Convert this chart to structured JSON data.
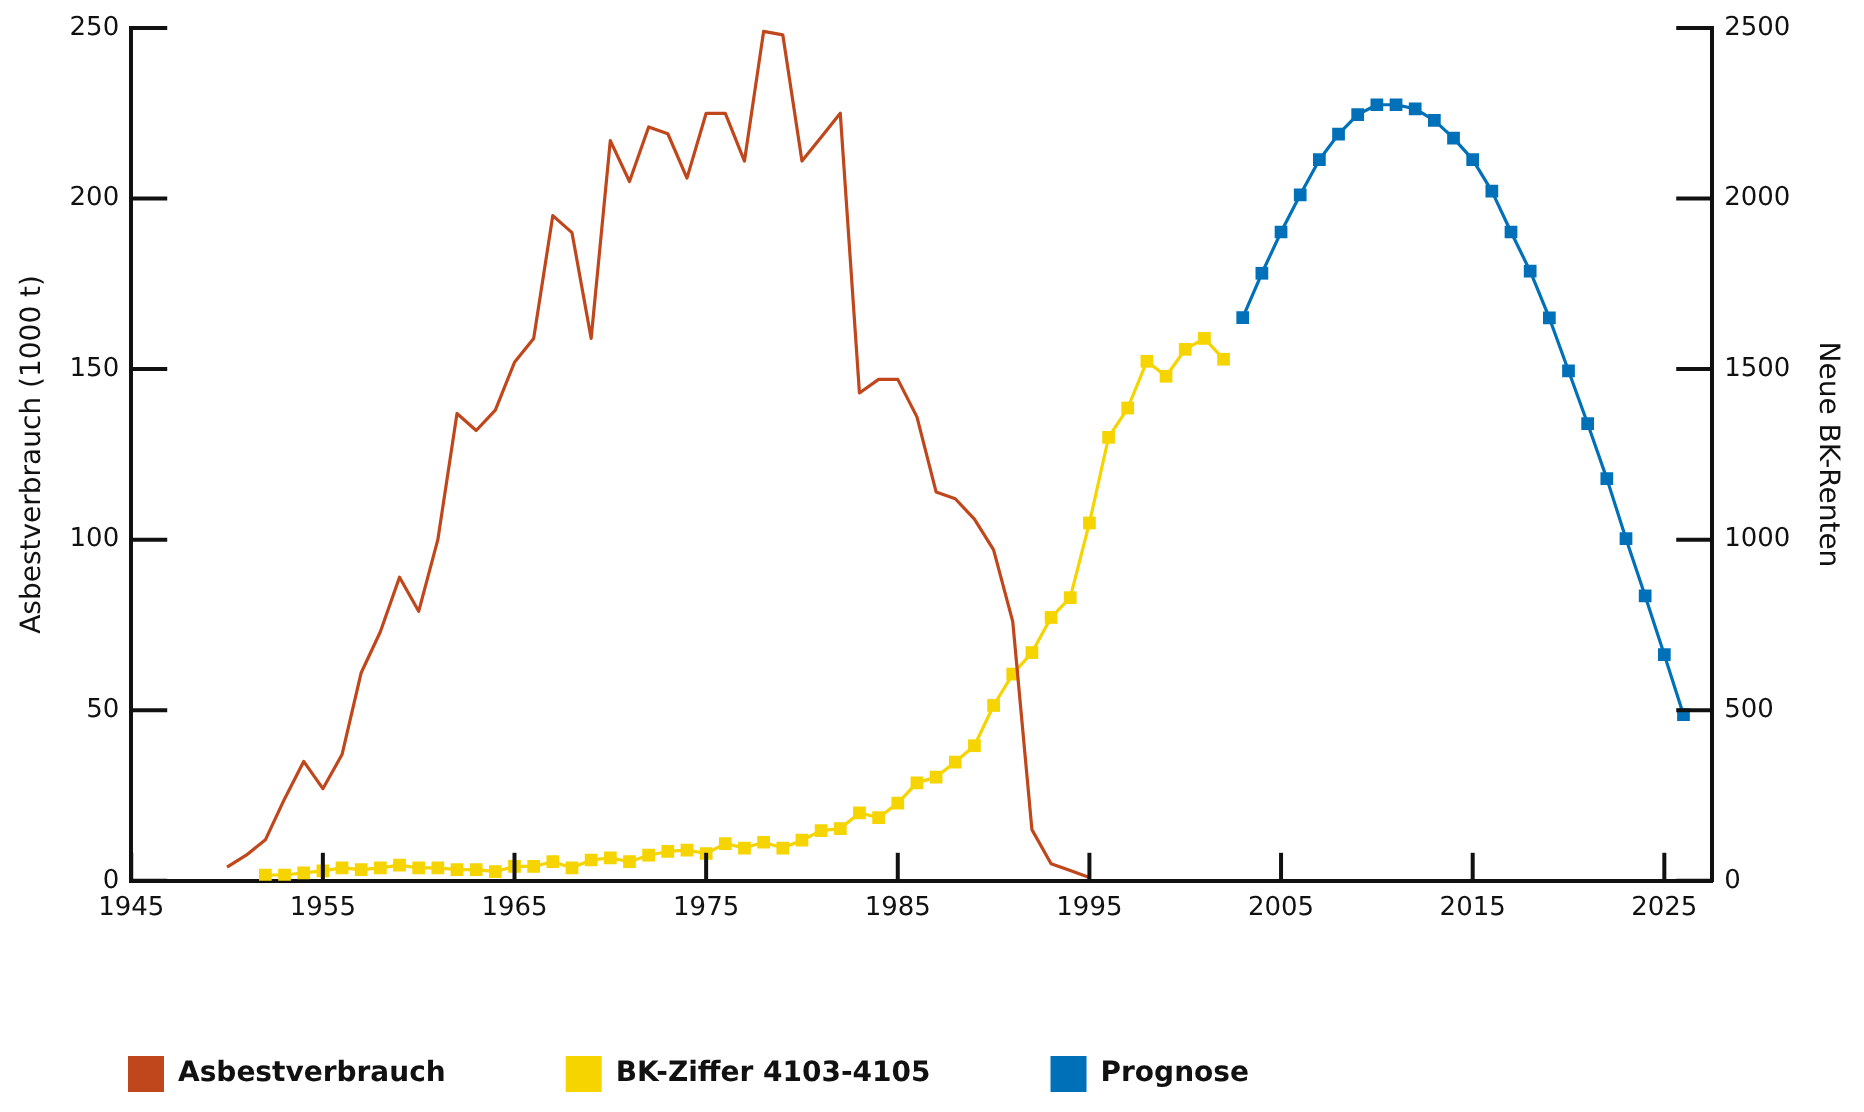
{
  "chart_data": {
    "type": "line",
    "xlabel": null,
    "ylabel": "Asbestverbrauch (1000 t)",
    "y2label": "Neue BK-Renten",
    "xlim": [
      1945,
      2027.5
    ],
    "xticks": [
      1945,
      1955,
      1965,
      1975,
      1985,
      1995,
      2005,
      2015,
      2025
    ],
    "ylim": [
      0,
      250
    ],
    "yticks": [
      0,
      50,
      100,
      150,
      200,
      250
    ],
    "y2lim": [
      0,
      2500
    ],
    "y2ticks": [
      0,
      500,
      1000,
      1500,
      2000,
      2500
    ],
    "legend": "bottom",
    "series": [
      {
        "name": "Asbestverbrauch",
        "color": "#c0461b",
        "marker": "none",
        "x": [
          1950,
          1951,
          1952,
          1953,
          1954,
          1955,
          1956,
          1957,
          1958,
          1959,
          1960,
          1961,
          1962,
          1963,
          1964,
          1965,
          1966,
          1967,
          1968,
          1969,
          1970,
          1971,
          1972,
          1973,
          1974,
          1975,
          1976,
          1977,
          1978,
          1979,
          1980,
          1981,
          1982,
          1983,
          1984,
          1985,
          1986,
          1987,
          1988,
          1989,
          1990,
          1991,
          1992,
          1993,
          1994,
          1995
        ],
        "values": [
          4,
          7.5,
          12,
          24,
          35,
          27,
          37,
          61,
          73,
          89,
          79,
          100,
          137,
          132,
          138,
          152,
          159,
          195,
          190,
          159,
          217,
          205,
          221,
          219,
          206,
          225,
          225,
          211,
          249,
          248,
          211,
          218,
          225,
          143,
          147,
          147,
          136,
          114,
          112,
          106,
          97,
          76,
          15,
          5,
          3,
          1
        ]
      },
      {
        "name": "BK-Ziffer 4103-4105",
        "color": "#f5d400",
        "marker": "square",
        "axis": "y2",
        "x": [
          1952,
          1953,
          1954,
          1955,
          1956,
          1957,
          1958,
          1959,
          1960,
          1961,
          1962,
          1963,
          1964,
          1965,
          1966,
          1967,
          1968,
          1969,
          1970,
          1971,
          1972,
          1973,
          1974,
          1975,
          1976,
          1977,
          1978,
          1979,
          1980,
          1981,
          1982,
          1983,
          1984,
          1985,
          1986,
          1987,
          1988,
          1989,
          1990,
          1991,
          1992,
          1993,
          1994,
          1995,
          1996,
          1997,
          1998,
          1999,
          2000,
          2001,
          2002
        ],
        "values": [
          17,
          17,
          23,
          29,
          38,
          33,
          38,
          46,
          38,
          38,
          33,
          33,
          27,
          42,
          42,
          56,
          38,
          61,
          67,
          56,
          75,
          86,
          90,
          80,
          109,
          96,
          113,
          96,
          119,
          147,
          153,
          199,
          185,
          228,
          287,
          304,
          348,
          396,
          514,
          606,
          669,
          772,
          830,
          1049,
          1300,
          1386,
          1523,
          1479,
          1558,
          1590,
          1529
        ]
      },
      {
        "name": "Prognose",
        "color": "#0070b8",
        "marker": "square",
        "axis": "y2",
        "x": [
          2003,
          2004,
          2005,
          2006,
          2007,
          2008,
          2009,
          2010,
          2011,
          2012,
          2013,
          2014,
          2015,
          2016,
          2017,
          2018,
          2019,
          2020,
          2021,
          2022,
          2023,
          2024,
          2025,
          2026
        ],
        "values": [
          1651,
          1781,
          1902,
          2011,
          2114,
          2189,
          2246,
          2275,
          2275,
          2263,
          2229,
          2177,
          2114,
          2022,
          1902,
          1787,
          1650,
          1495,
          1340,
          1179,
          1003,
          835,
          663,
          487
        ]
      }
    ]
  }
}
